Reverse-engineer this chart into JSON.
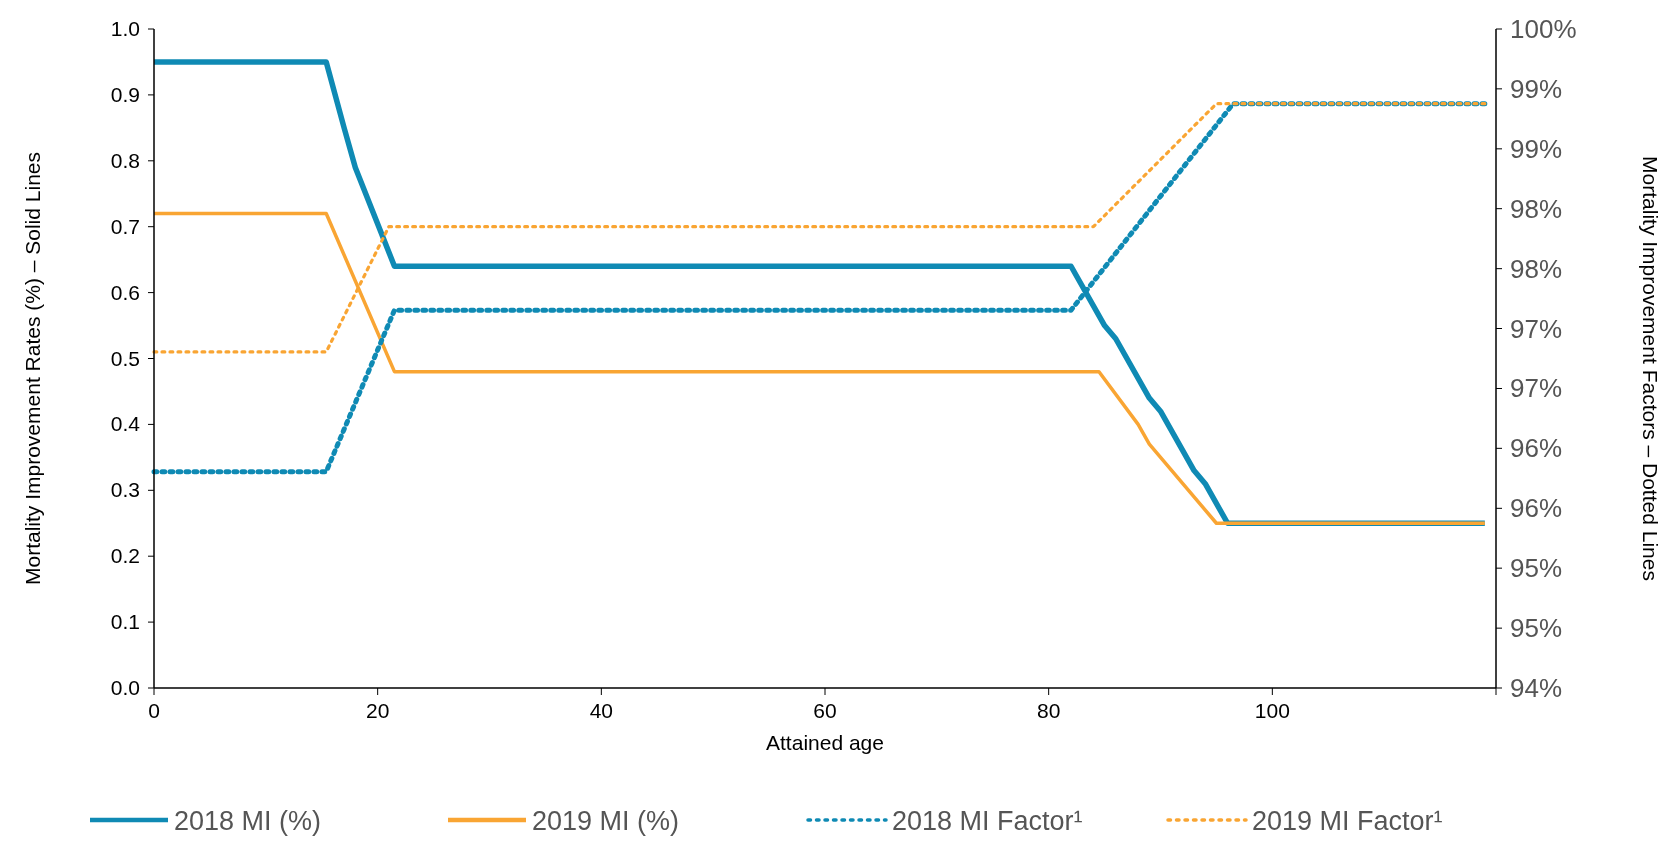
{
  "chart_data": {
    "type": "line",
    "xlabel": "Attained age",
    "ylabel": "Mortality Improvement Rates (%) – Solid Lines",
    "y2label": "Mortality Improvement Factors – Dotted Lines",
    "xlim": [
      0,
      120
    ],
    "xticks": [
      0,
      20,
      40,
      60,
      80,
      100
    ],
    "ylim": [
      0,
      1
    ],
    "yticks": [
      {
        "value": 0,
        "label": "0.0"
      },
      0.1,
      0.2,
      0.3,
      0.4,
      0.5,
      0.6,
      0.7,
      0.8,
      0.9,
      {
        "value": 1,
        "label": "1.0"
      }
    ],
    "y2lim": [
      94,
      100
    ],
    "y2ticks": [
      {
        "value": 94,
        "label": "94%"
      },
      {
        "value": 94.545,
        "label": "95%"
      },
      {
        "value": 95.091,
        "label": "95%"
      },
      {
        "value": 95.636,
        "label": "96%"
      },
      {
        "value": 96.182,
        "label": "96%"
      },
      {
        "value": 96.727,
        "label": "97%"
      },
      {
        "value": 97.273,
        "label": "97%"
      },
      {
        "value": 97.818,
        "label": "98%"
      },
      {
        "value": 98.364,
        "label": "98%"
      },
      {
        "value": 98.909,
        "label": "99%"
      },
      {
        "value": 99.455,
        "label": "99%"
      },
      {
        "value": 100,
        "label": "100%"
      }
    ],
    "grid": false,
    "legend": "bottom",
    "series": [
      {
        "name": "2018 MI (%)",
        "color": "#0f8ab4",
        "line_style": "solid",
        "x": [
          0,
          15.4,
          17,
          18,
          21.5,
          82,
          85,
          86,
          89,
          90,
          93,
          94,
          96,
          119
        ],
        "values": [
          0.95,
          0.95,
          0.85,
          0.79,
          0.64,
          0.64,
          0.55,
          0.53,
          0.44,
          0.42,
          0.33,
          0.31,
          0.25,
          0.25
        ]
      },
      {
        "name": "2019 MI (%)",
        "color": "#f9a533",
        "line_style": "solid",
        "x": [
          0,
          15.4,
          21.5,
          84.5,
          88,
          89,
          95,
          119
        ],
        "values": [
          0.72,
          0.72,
          0.48,
          0.48,
          0.4,
          0.37,
          0.25,
          0.25
        ]
      },
      {
        "name": "2018 MI Factor¹",
        "color": "#0f8ab4",
        "line_style": "dotted",
        "axis": "y2",
        "x": [
          0,
          15.4,
          21.5,
          82,
          96.5,
          119
        ],
        "values": [
          95.97,
          95.97,
          97.44,
          97.44,
          99.32,
          99.32
        ]
      },
      {
        "name": "2019 MI Factor¹",
        "color": "#f9a533",
        "line_style": "dotted",
        "axis": "y2",
        "x": [
          0,
          15.4,
          21,
          84,
          95,
          119
        ],
        "values": [
          97.06,
          97.06,
          98.2,
          98.2,
          99.32,
          99.32
        ]
      }
    ]
  }
}
